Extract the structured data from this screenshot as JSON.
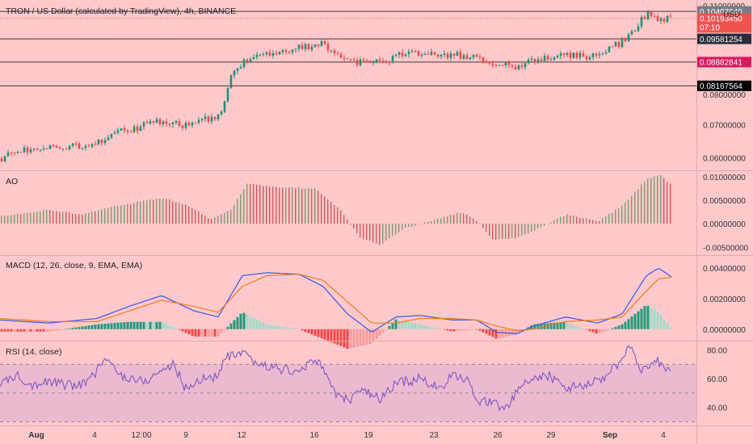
{
  "header": {
    "title": "TRON / US Dollar (calculated by TradingView), 4h, BINANCE",
    "currency": "USD"
  },
  "colors": {
    "background": "#ffc9cc",
    "up": "#1f8f74",
    "down": "#ef4b4b",
    "ao_up": "#7f9a6f",
    "ao_down": "#c85c5c",
    "macd_line": "#3856e8",
    "signal_line": "#f07b1a",
    "hist_strong_up": "#1e9b7e",
    "hist_weak_up": "#9fdac9",
    "hist_strong_down": "#f24747",
    "hist_weak_down": "#f49a9a",
    "rsi_line": "#7e57c2",
    "rsi_band": "#e6b4d2",
    "sep": "#e8a7ac",
    "grid": "#f2b8bd",
    "axis_text": "#333333"
  },
  "price_pane": {
    "y_ticks": [
      "0.06000000",
      "0.07000000"
    ],
    "clipped_labels": [
      "0.08000000",
      "0.11000000"
    ],
    "horizontal_lines": [
      0.1040764,
      0.09581254,
      0.08882841,
      0.08167564
    ],
    "line_badges": [
      {
        "value": 0.1040764,
        "text": "0.10407640",
        "bg": "#787b86",
        "fg": "#ffffff"
      },
      {
        "value": 0.1019345,
        "text": "0.10193450",
        "bg": "#ef5350",
        "fg": "#ffffff",
        "sub": "07:10"
      },
      {
        "value": 0.09581254,
        "text": "0.09581254",
        "bg": "#2a2e39",
        "fg": "#ffffff"
      },
      {
        "value": 0.08882841,
        "text": "0.08882841",
        "bg": "#d81b60",
        "fg": "#ffffff"
      },
      {
        "value": 0.08167564,
        "text": "0.08167564",
        "bg": "#000000",
        "fg": "#ffffff"
      }
    ],
    "current_price_line": 0.1019345
  },
  "ao_pane": {
    "label": "AO",
    "y_ticks": [
      "0.01000000",
      "0.00500000",
      "0.00000000",
      "-0.00500000"
    ]
  },
  "macd_pane": {
    "label": "MACD (12, 26, close, 9, EMA, EMA)",
    "y_ticks": [
      "0.00400000",
      "0.00200000",
      "0.00000000"
    ]
  },
  "rsi_pane": {
    "label": "RSI (14, close)",
    "y_ticks": [
      "80.00",
      "60.00",
      "40.00"
    ]
  },
  "time_axis": {
    "labels": [
      "Aug",
      "4",
      "12:00",
      "9",
      "12",
      "16",
      "19",
      "23",
      "26",
      "29",
      "Sep",
      "4"
    ]
  },
  "chart_data": [
    {
      "type": "candlestick",
      "title": "TRON / US Dollar (calculated by TradingView), 4h, BINANCE",
      "ylim": [
        0.0565,
        0.1075
      ],
      "close_anchors": [
        [
          0,
          0.0598
        ],
        [
          40,
          0.0628
        ],
        [
          80,
          0.0635
        ],
        [
          120,
          0.0642
        ],
        [
          150,
          0.068
        ],
        [
          200,
          0.071
        ],
        [
          230,
          0.0698
        ],
        [
          260,
          0.0718
        ],
        [
          275,
          0.074
        ],
        [
          285,
          0.0845
        ],
        [
          305,
          0.0895
        ],
        [
          340,
          0.0915
        ],
        [
          370,
          0.093
        ],
        [
          400,
          0.0945
        ],
        [
          430,
          0.089
        ],
        [
          470,
          0.0888
        ],
        [
          500,
          0.0912
        ],
        [
          540,
          0.0915
        ],
        [
          580,
          0.0905
        ],
        [
          600,
          0.089
        ],
        [
          640,
          0.087
        ],
        [
          660,
          0.0892
        ],
        [
          700,
          0.091
        ],
        [
          740,
          0.0905
        ],
        [
          770,
          0.095
        ],
        [
          800,
          0.103
        ],
        [
          815,
          0.102
        ],
        [
          832,
          0.102
        ]
      ]
    },
    {
      "type": "bar",
      "title": "AO",
      "ylim": [
        -0.0065,
        0.0112
      ],
      "value_anchors": [
        [
          0,
          0.0015
        ],
        [
          60,
          0.003
        ],
        [
          100,
          0.002
        ],
        [
          150,
          0.004
        ],
        [
          200,
          0.0055
        ],
        [
          230,
          0.004
        ],
        [
          260,
          0.001
        ],
        [
          285,
          0.003
        ],
        [
          305,
          0.0085
        ],
        [
          340,
          0.0078
        ],
        [
          390,
          0.0075
        ],
        [
          420,
          0.003
        ],
        [
          445,
          -0.003
        ],
        [
          470,
          -0.0045
        ],
        [
          500,
          -0.001
        ],
        [
          540,
          0.001
        ],
        [
          570,
          0.0025
        ],
        [
          590,
          0.0005
        ],
        [
          610,
          -0.0035
        ],
        [
          640,
          -0.003
        ],
        [
          660,
          -0.0015
        ],
        [
          700,
          0.002
        ],
        [
          740,
          0.0005
        ],
        [
          770,
          0.004
        ],
        [
          800,
          0.0095
        ],
        [
          815,
          0.0105
        ],
        [
          832,
          0.008
        ]
      ]
    },
    {
      "type": "line+bar",
      "title": "MACD (12, 26, close, 9, EMA, EMA)",
      "ylim": [
        -0.0007,
        0.0048
      ],
      "series": [
        {
          "name": "MACD",
          "anchors": [
            [
              0,
              0.0006
            ],
            [
              60,
              0.0004
            ],
            [
              120,
              0.0007
            ],
            [
              160,
              0.0015
            ],
            [
              200,
              0.0022
            ],
            [
              240,
              0.0012
            ],
            [
              270,
              0.0008
            ],
            [
              300,
              0.0035
            ],
            [
              330,
              0.0037
            ],
            [
              370,
              0.0036
            ],
            [
              400,
              0.0028
            ],
            [
              430,
              0.001
            ],
            [
              460,
              -0.0002
            ],
            [
              490,
              0.0008
            ],
            [
              520,
              0.0009
            ],
            [
              560,
              0.0006
            ],
            [
              590,
              0.0006
            ],
            [
              615,
              -0.0002
            ],
            [
              640,
              -0.0003
            ],
            [
              660,
              0.0002
            ],
            [
              700,
              0.0008
            ],
            [
              740,
              0.0004
            ],
            [
              770,
              0.001
            ],
            [
              800,
              0.0035
            ],
            [
              815,
              0.004
            ],
            [
              832,
              0.0034
            ]
          ]
        },
        {
          "name": "Signal",
          "anchors": [
            [
              0,
              0.0007
            ],
            [
              60,
              0.0005
            ],
            [
              120,
              0.0005
            ],
            [
              160,
              0.0012
            ],
            [
              200,
              0.0019
            ],
            [
              240,
              0.0015
            ],
            [
              270,
              0.0011
            ],
            [
              300,
              0.0028
            ],
            [
              330,
              0.0035
            ],
            [
              370,
              0.0036
            ],
            [
              400,
              0.0032
            ],
            [
              430,
              0.0018
            ],
            [
              460,
              0.0004
            ],
            [
              490,
              0.0004
            ],
            [
              520,
              0.0007
            ],
            [
              560,
              0.0007
            ],
            [
              590,
              0.0006
            ],
            [
              615,
              0.0002
            ],
            [
              640,
              -0.0001
            ],
            [
              660,
              0.0
            ],
            [
              700,
              0.0005
            ],
            [
              740,
              0.0006
            ],
            [
              770,
              0.0008
            ],
            [
              800,
              0.0025
            ],
            [
              815,
              0.0033
            ],
            [
              832,
              0.0034
            ]
          ]
        }
      ]
    },
    {
      "type": "line",
      "title": "RSI (14, close)",
      "ylim": [
        28,
        86
      ],
      "levels": [
        70,
        50,
        30
      ],
      "anchors": [
        [
          0,
          55
        ],
        [
          20,
          63
        ],
        [
          40,
          56
        ],
        [
          60,
          58
        ],
        [
          90,
          55
        ],
        [
          110,
          58
        ],
        [
          130,
          74
        ],
        [
          150,
          62
        ],
        [
          180,
          58
        ],
        [
          200,
          66
        ],
        [
          215,
          70
        ],
        [
          230,
          53
        ],
        [
          250,
          60
        ],
        [
          270,
          62
        ],
        [
          280,
          75
        ],
        [
          300,
          77
        ],
        [
          320,
          70
        ],
        [
          340,
          68
        ],
        [
          370,
          64
        ],
        [
          385,
          72
        ],
        [
          400,
          70
        ],
        [
          410,
          52
        ],
        [
          430,
          45
        ],
        [
          450,
          52
        ],
        [
          470,
          45
        ],
        [
          490,
          57
        ],
        [
          520,
          60
        ],
        [
          545,
          53
        ],
        [
          560,
          62
        ],
        [
          580,
          58
        ],
        [
          595,
          43
        ],
        [
          610,
          45
        ],
        [
          625,
          38
        ],
        [
          645,
          55
        ],
        [
          660,
          60
        ],
        [
          680,
          62
        ],
        [
          700,
          54
        ],
        [
          730,
          56
        ],
        [
          750,
          62
        ],
        [
          765,
          70
        ],
        [
          780,
          82
        ],
        [
          795,
          66
        ],
        [
          810,
          74
        ],
        [
          822,
          68
        ],
        [
          830,
          66
        ]
      ]
    }
  ]
}
